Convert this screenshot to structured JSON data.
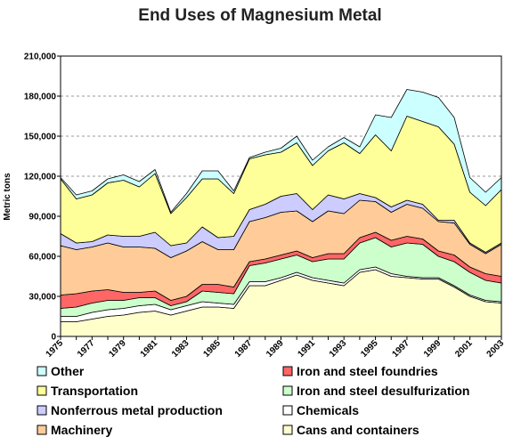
{
  "chart_data": {
    "type": "area",
    "stacked": true,
    "title": "End Uses of Magnesium Metal",
    "xlabel": "",
    "ylabel": "Metric tons",
    "x": [
      1975,
      1976,
      1977,
      1978,
      1979,
      1980,
      1981,
      1982,
      1983,
      1984,
      1985,
      1986,
      1987,
      1988,
      1989,
      1990,
      1991,
      1992,
      1993,
      1994,
      1995,
      1996,
      1997,
      1998,
      1999,
      2000,
      2001,
      2002,
      2003
    ],
    "x_tick_labels": [
      "1975",
      "1977",
      "1979",
      "1981",
      "1983",
      "1985",
      "1987",
      "1989",
      "1991",
      "1993",
      "1995",
      "1997",
      "1999",
      "2001",
      "2003"
    ],
    "ylim": [
      0,
      210000
    ],
    "y_ticks": [
      0,
      30000,
      60000,
      90000,
      120000,
      150000,
      180000,
      210000
    ],
    "y_tick_labels": [
      "0",
      "30,000",
      "60,000",
      "90,000",
      "120,000",
      "150,000",
      "180,000",
      "210,000"
    ],
    "grid": "horizontal dashed",
    "legend_position": "bottom",
    "series": [
      {
        "name": "Cans and containers",
        "color": "#ffffcc",
        "values": [
          11000,
          11000,
          13000,
          15000,
          16000,
          18000,
          19000,
          16000,
          19000,
          22000,
          22000,
          21000,
          38000,
          38000,
          42000,
          46000,
          42000,
          40000,
          38000,
          48000,
          50000,
          45000,
          44000,
          43000,
          43000,
          37000,
          30000,
          26000,
          25000
        ]
      },
      {
        "name": "Chemicals",
        "color": "#ffffff",
        "values": [
          4000,
          4000,
          5000,
          5000,
          5000,
          5000,
          5000,
          4000,
          4000,
          4000,
          3000,
          3000,
          3000,
          3000,
          2000,
          2000,
          2000,
          2000,
          2000,
          2000,
          2000,
          2000,
          1000,
          1000,
          1000,
          1000,
          1000,
          1000,
          1000
        ]
      },
      {
        "name": "Iron and steel desulfurization",
        "color": "#ccffcc",
        "values": [
          6000,
          7000,
          7000,
          7000,
          6000,
          6000,
          5000,
          3000,
          3000,
          8000,
          8000,
          8000,
          12000,
          14000,
          14000,
          13000,
          12000,
          16000,
          18000,
          20000,
          22000,
          20000,
          25000,
          25000,
          16000,
          18000,
          17000,
          15000,
          14000
        ]
      },
      {
        "name": "Iron and steel foundries",
        "color": "#ff6666",
        "values": [
          10000,
          10000,
          9000,
          8000,
          6000,
          4000,
          5000,
          4000,
          4000,
          5000,
          6000,
          5000,
          3000,
          3000,
          3000,
          3000,
          3000,
          4000,
          4000,
          4000,
          4000,
          5000,
          5000,
          4000,
          4000,
          5000,
          4000,
          5000,
          5000
        ]
      },
      {
        "name": "Machinery",
        "color": "#ffcc99",
        "values": [
          37000,
          33000,
          33000,
          35000,
          34000,
          34000,
          32000,
          32000,
          34000,
          32000,
          26000,
          28000,
          30000,
          31000,
          32000,
          30000,
          27000,
          32000,
          30000,
          28000,
          23000,
          21000,
          24000,
          23000,
          22000,
          24000,
          17000,
          15000,
          24000
        ]
      },
      {
        "name": "Nonferrous metal production",
        "color": "#ccccff",
        "values": [
          9000,
          5000,
          4000,
          6000,
          8000,
          8000,
          12000,
          9000,
          6000,
          11000,
          9000,
          10000,
          9000,
          10000,
          12000,
          13000,
          9000,
          12000,
          11000,
          5000,
          3000,
          4000,
          3000,
          3000,
          1000,
          2000,
          1000,
          1000,
          1000
        ]
      },
      {
        "name": "Transportation",
        "color": "#ffff99",
        "values": [
          41000,
          33000,
          35000,
          39000,
          42000,
          37000,
          44000,
          24000,
          34000,
          36000,
          44000,
          32000,
          38000,
          37000,
          33000,
          38000,
          33000,
          33000,
          42000,
          30000,
          47000,
          42000,
          63000,
          62000,
          70000,
          57000,
          38000,
          35000,
          40000
        ]
      },
      {
        "name": "Other",
        "color": "#ccffff",
        "values": [
          1000,
          3000,
          3000,
          3000,
          4000,
          4000,
          3000,
          1000,
          3000,
          6000,
          6000,
          2000,
          1000,
          2000,
          3000,
          5000,
          4000,
          3000,
          4000,
          5000,
          15000,
          25000,
          20000,
          22000,
          22000,
          20000,
          11000,
          10000,
          9000
        ]
      }
    ],
    "legend_order": [
      "Other",
      "Iron and steel foundries",
      "Transportation",
      "Iron and steel desulfurization",
      "Nonferrous metal production",
      "Chemicals",
      "Machinery",
      "Cans and containers"
    ]
  }
}
